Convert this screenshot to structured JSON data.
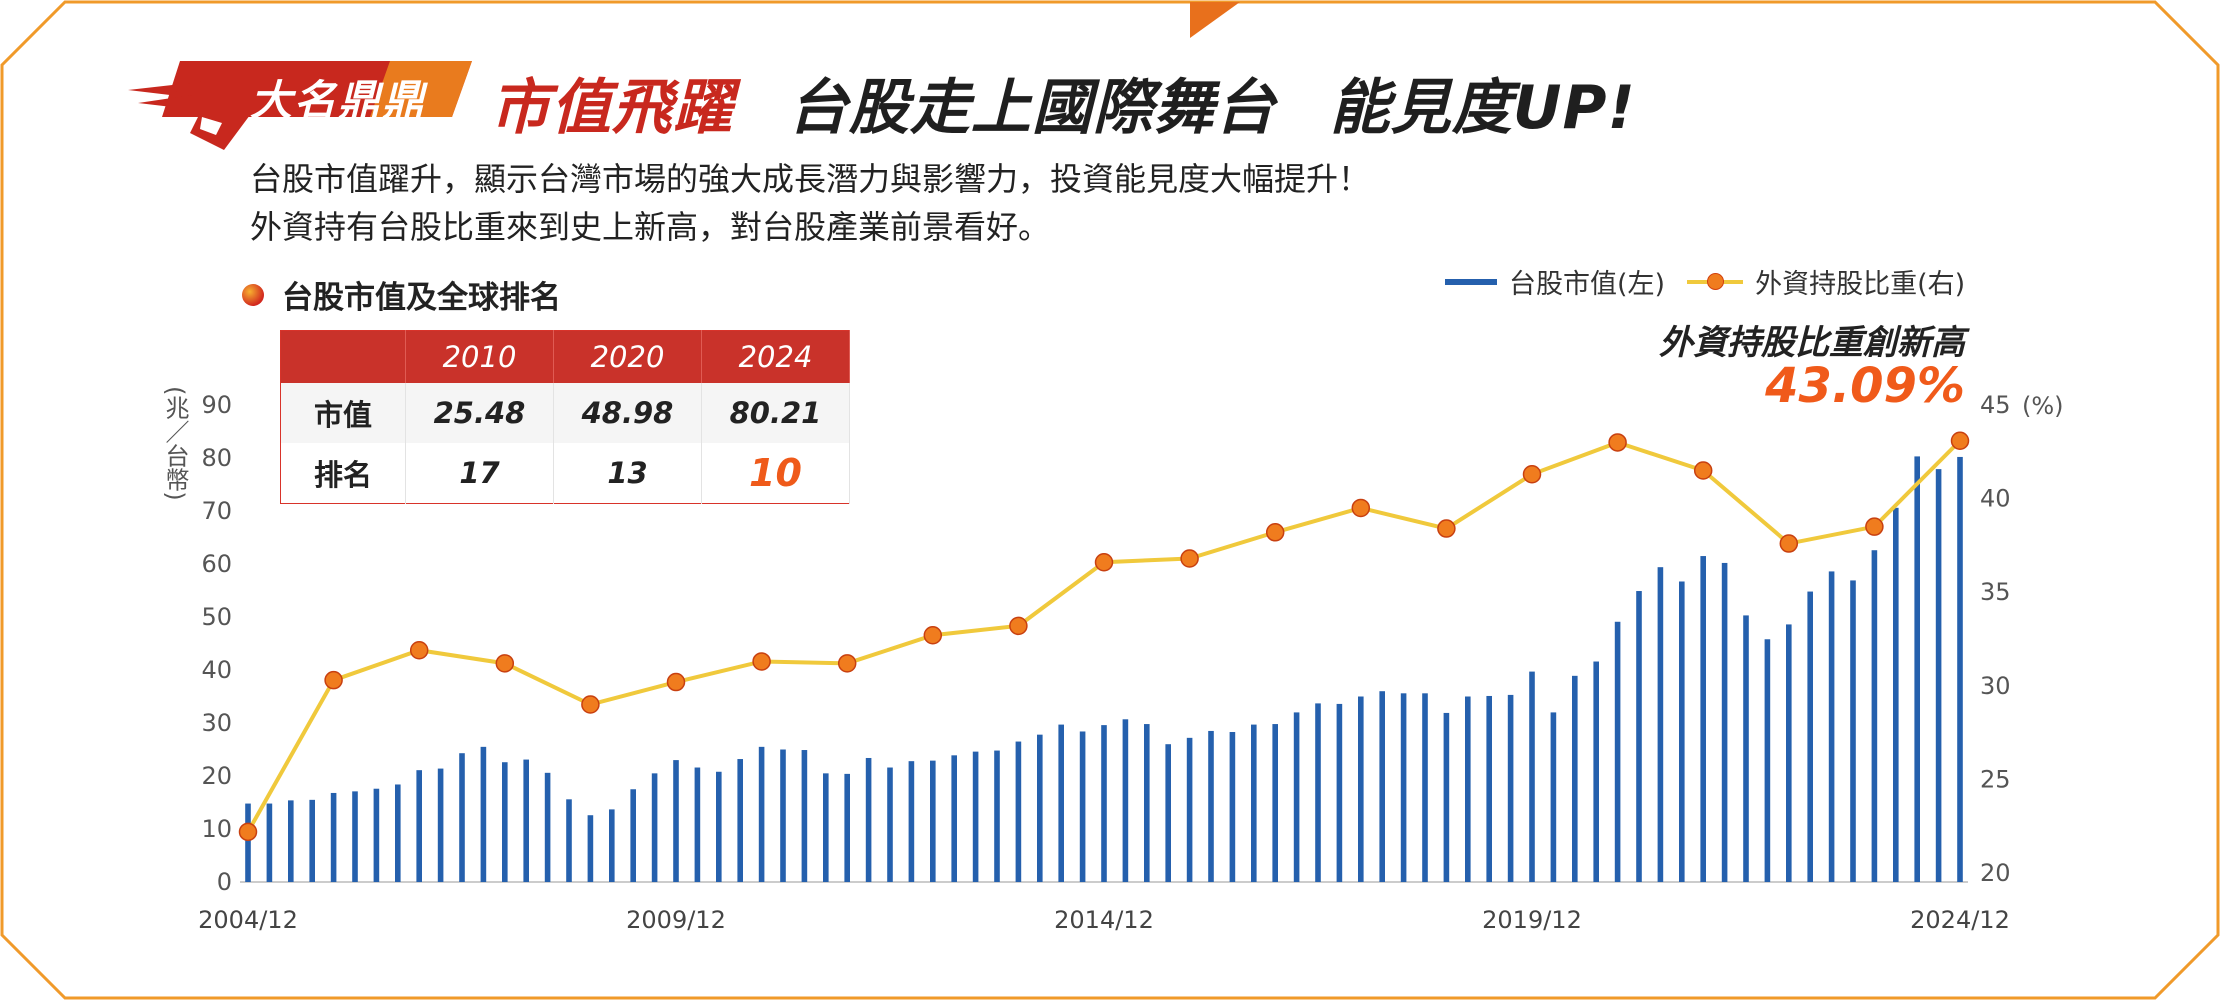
{
  "badge_label": "大名鼎鼎",
  "title": {
    "part1": "市值飛躍",
    "part2": "台股走上國際舞台",
    "part3": "能見度UP!"
  },
  "description": [
    "台股市值躍升，顯示台灣市場的強大成長潛力與影響力，投資能見度大幅提升！",
    "外資持有台股比重來到史上新高，對台股產業前景看好。"
  ],
  "section_title": "台股市值及全球排名",
  "legend": {
    "bar": "台股市值(左)",
    "line": "外資持股比重(右)"
  },
  "highlight": {
    "label": "外資持股比重創新高",
    "value": "43.09%"
  },
  "table": {
    "headers": [
      "",
      "2010",
      "2020",
      "2024"
    ],
    "rows": [
      {
        "label": "市值",
        "values": [
          "25.48",
          "48.98",
          "80.21"
        ]
      },
      {
        "label": "排名",
        "values": [
          "17",
          "13",
          "10"
        ]
      }
    ]
  },
  "colors": {
    "bar": "#2560ad",
    "line": "#f0c93c",
    "marker": "#f07c1e",
    "accent": "#c8281e",
    "frame": "#f09a2a"
  },
  "chart_data": {
    "type": "bar+line",
    "y_left_label": "(兆／台幣)",
    "y_right_label": "(%)",
    "y_left_ticks": [
      "0",
      "10",
      "20",
      "30",
      "40",
      "50",
      "60",
      "70",
      "80",
      "90"
    ],
    "y_right_ticks": [
      "20",
      "25",
      "30",
      "35",
      "40",
      "45"
    ],
    "ylim_left": [
      0,
      90
    ],
    "ylim_right": [
      20,
      45
    ],
    "x_ticks": [
      "2004/12",
      "2009/12",
      "2014/12",
      "2019/12",
      "2024/12"
    ],
    "grid": false,
    "legend_position": "top-right",
    "bar_series": {
      "name": "台股市值(左)",
      "values": [
        14.8,
        14.8,
        15.4,
        15.5,
        16.8,
        17.1,
        17.6,
        18.4,
        21.1,
        21.4,
        24.3,
        25.5,
        22.6,
        23.1,
        20.6,
        15.6,
        12.6,
        13.7,
        17.5,
        20.5,
        23.0,
        21.6,
        20.8,
        23.2,
        25.5,
        25.0,
        24.9,
        20.5,
        20.4,
        23.4,
        21.6,
        22.8,
        22.9,
        23.9,
        24.6,
        24.8,
        26.5,
        27.8,
        29.7,
        28.4,
        29.6,
        30.7,
        29.8,
        26.0,
        27.2,
        28.5,
        28.3,
        29.7,
        29.8,
        32.0,
        33.7,
        33.6,
        35.0,
        36.0,
        35.6,
        35.6,
        31.9,
        35.0,
        35.1,
        35.3,
        39.7,
        32.0,
        38.9,
        41.6,
        49.1,
        54.9,
        59.4,
        56.7,
        61.5,
        60.2,
        50.3,
        45.8,
        48.6,
        54.8,
        58.6,
        56.9,
        62.6,
        70.6,
        80.3,
        77.9,
        80.2
      ]
    },
    "line_series": {
      "name": "外資持股比重(右)",
      "x_years": [
        2004,
        2005,
        2006,
        2007,
        2008,
        2009,
        2010,
        2011,
        2012,
        2013,
        2014,
        2015,
        2016,
        2017,
        2018,
        2019,
        2020,
        2021,
        2022,
        2023,
        2024
      ],
      "values": [
        22.2,
        30.3,
        31.9,
        31.2,
        29.0,
        30.2,
        31.3,
        31.2,
        32.7,
        33.2,
        36.6,
        36.8,
        38.2,
        39.5,
        38.4,
        41.3,
        43.0,
        41.5,
        37.6,
        38.5,
        43.09
      ]
    }
  }
}
